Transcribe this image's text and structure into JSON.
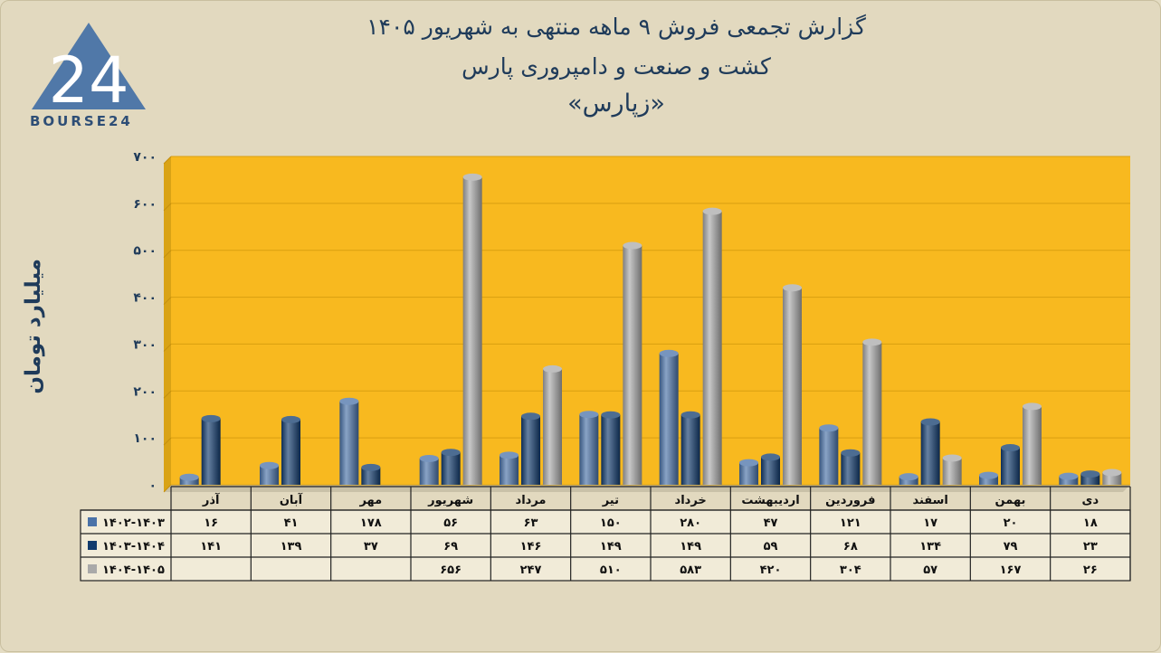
{
  "logo": {
    "text": "BOURSE24",
    "mark": "24"
  },
  "chart_data": {
    "type": "bar",
    "title": "گزارش تجمعی فروش ۹ ماهه منتهی به شهریور ۱۴۰۵",
    "subtitle": "کشت و صنعت و دامپروری پارس",
    "ticker": "«زپارس»",
    "ylabel": "میلیارد تومان",
    "ylim": [
      0,
      700
    ],
    "yticks": [
      0,
      100,
      200,
      300,
      400,
      500,
      600,
      700
    ],
    "ytick_labels": [
      "۰",
      "۱۰۰",
      "۲۰۰",
      "۳۰۰",
      "۴۰۰",
      "۵۰۰",
      "۶۰۰",
      "۷۰۰"
    ],
    "grid": true,
    "categories": [
      "دی",
      "بهمن",
      "اسفند",
      "فروردین",
      "اردیبهشت",
      "خرداد",
      "تیر",
      "مرداد",
      "شهریور",
      "مهر",
      "آبان",
      "آذر"
    ],
    "series": [
      {
        "name": "۱۴۰۲-۱۴۰۳",
        "color": "#4a72a8",
        "values": [
          18,
          20,
          17,
          121,
          47,
          280,
          150,
          63,
          56,
          178,
          41,
          16
        ],
        "labels": [
          "۱۸",
          "۲۰",
          "۱۷",
          "۱۲۱",
          "۴۷",
          "۲۸۰",
          "۱۵۰",
          "۶۳",
          "۵۶",
          "۱۷۸",
          "۴۱",
          "۱۶"
        ]
      },
      {
        "name": "۱۴۰۳-۱۴۰۴",
        "color": "#123c6e",
        "values": [
          23,
          79,
          134,
          68,
          59,
          149,
          149,
          146,
          69,
          37,
          139,
          141
        ],
        "labels": [
          "۲۳",
          "۷۹",
          "۱۳۴",
          "۶۸",
          "۵۹",
          "۱۴۹",
          "۱۴۹",
          "۱۴۶",
          "۶۹",
          "۳۷",
          "۱۳۹",
          "۱۴۱"
        ]
      },
      {
        "name": "۱۴۰۴-۱۴۰۵",
        "color": "#a9a9a9",
        "values": [
          26,
          167,
          57,
          304,
          420,
          583,
          510,
          247,
          656,
          null,
          null,
          null
        ],
        "labels": [
          "۲۶",
          "۱۶۷",
          "۵۷",
          "۳۰۴",
          "۴۲۰",
          "۵۸۳",
          "۵۱۰",
          "۲۴۷",
          "۶۵۶",
          "",
          "",
          ""
        ]
      }
    ],
    "plot_background": "#f8b91f",
    "legend": "data-table"
  }
}
